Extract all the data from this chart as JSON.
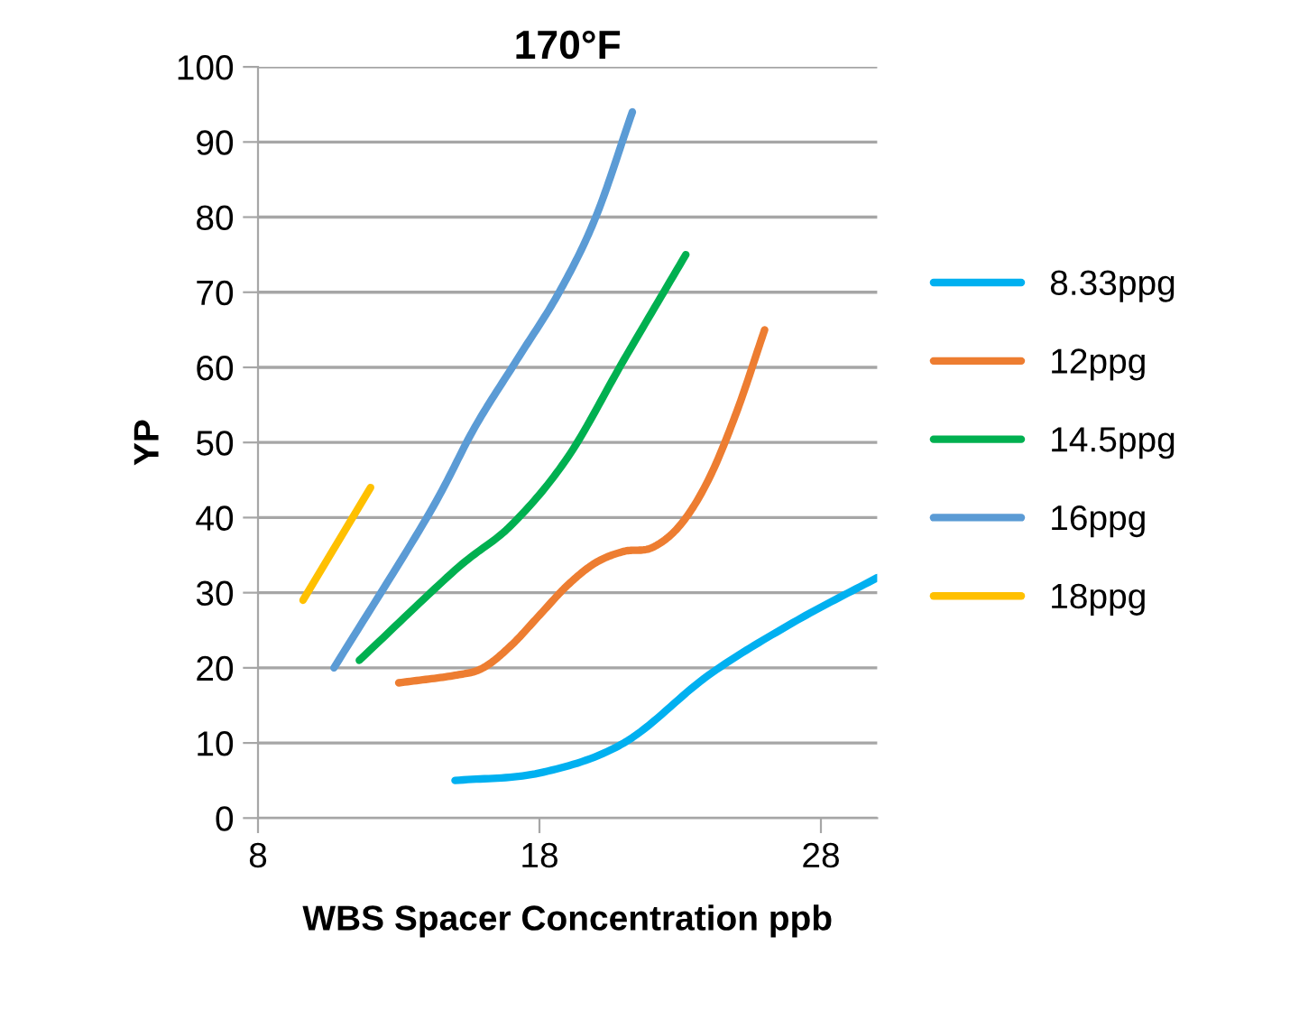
{
  "chart_data": {
    "type": "line",
    "title": "170°F",
    "xlabel": "WBS Spacer Concentration ppb",
    "ylabel": "YP",
    "xlim": [
      8,
      30
    ],
    "xticks": [
      8,
      18,
      28
    ],
    "ylim": [
      0,
      100
    ],
    "yticks": [
      0,
      10,
      20,
      30,
      40,
      50,
      60,
      70,
      80,
      90,
      100
    ],
    "grid": "y",
    "legend": "right",
    "marker": "none",
    "line_style": "solid",
    "series": [
      {
        "name": "8.33ppg",
        "color": "#00b0f0",
        "x": [
          15,
          18,
          21,
          24,
          27,
          30
        ],
        "values": [
          5,
          6,
          10,
          19,
          26,
          32
        ]
      },
      {
        "name": "12ppg",
        "color": "#ed7d31",
        "x": [
          13,
          15,
          16,
          17,
          18,
          19,
          20,
          21,
          22,
          23,
          24,
          25,
          26
        ],
        "values": [
          18,
          19,
          20,
          23,
          27,
          31,
          34,
          35.5,
          36,
          39,
          45,
          54,
          65
        ]
      },
      {
        "name": "14.5ppg",
        "color": "#00b050",
        "x": [
          11.6,
          15,
          17,
          19,
          21,
          23.2
        ],
        "values": [
          21,
          33,
          39,
          48,
          61,
          75
        ]
      },
      {
        "name": "16ppg",
        "color": "#5b9bd5",
        "x": [
          10.7,
          14,
          15.7,
          17.2,
          18.7,
          20,
          21.3
        ],
        "values": [
          20,
          40,
          52,
          61,
          70,
          80,
          94
        ]
      },
      {
        "name": "18ppg",
        "color": "#ffc000",
        "x": [
          9.6,
          12
        ],
        "values": [
          29,
          44
        ]
      }
    ]
  }
}
